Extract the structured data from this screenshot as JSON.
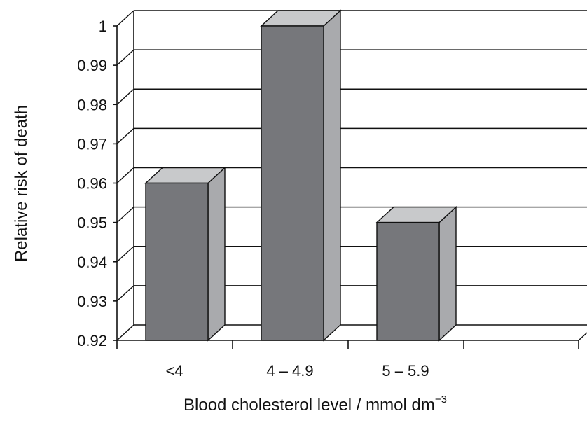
{
  "chart_data": {
    "type": "bar",
    "style": "3d",
    "categories": [
      "<4",
      "4 – 4.9",
      "5 – 5.9",
      ""
    ],
    "values": [
      0.96,
      1.0,
      0.95,
      null
    ],
    "xlabel": "Blood cholesterol level / mmol dm",
    "xlabel_exponent": "−3",
    "ylabel": "Relative risk of death",
    "ylim": [
      0.92,
      1.0
    ],
    "yticks": [
      "0.92",
      "0.93",
      "0.94",
      "0.95",
      "0.96",
      "0.97",
      "0.98",
      "0.99",
      "1"
    ],
    "grid": true,
    "colors": {
      "bar_front": "#76777b",
      "bar_top": "#c8c9cb",
      "bar_side": "#a9aaad"
    }
  }
}
